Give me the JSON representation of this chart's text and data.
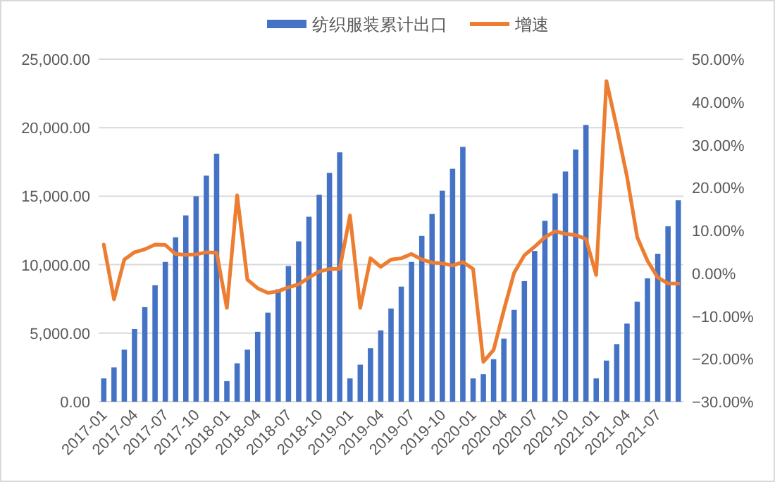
{
  "chart_data": {
    "type": "bar",
    "legend": "top",
    "grid": "y",
    "categories": [
      "2017-01",
      null,
      null,
      "2017-04",
      null,
      null,
      "2017-07",
      null,
      null,
      "2017-10",
      null,
      null,
      "2018-01",
      null,
      null,
      "2018-04",
      null,
      null,
      "2018-07",
      null,
      null,
      "2018-10",
      null,
      null,
      "2019-01",
      null,
      null,
      "2019-04",
      null,
      null,
      "2019-07",
      null,
      null,
      "2019-10",
      null,
      null,
      "2020-01",
      null,
      null,
      "2020-04",
      null,
      null,
      "2020-07",
      null,
      null,
      "2020-10",
      null,
      null,
      "2021-01",
      null,
      null,
      "2021-04",
      null,
      null,
      "2021-07",
      null,
      null
    ],
    "series": [
      {
        "name": "纺织服装累计出口",
        "color": "#4472c4",
        "values": [
          1700,
          2500,
          3800,
          5300,
          6900,
          8500,
          10200,
          12000,
          13600,
          15000,
          16500,
          18100,
          1500,
          2800,
          3800,
          5100,
          6500,
          8200,
          9900,
          11700,
          13500,
          15100,
          16700,
          18200,
          1700,
          2700,
          3900,
          5200,
          6800,
          8400,
          10200,
          12100,
          13700,
          15400,
          17000,
          18600,
          1700,
          2000,
          3100,
          4600,
          6700,
          8800,
          11000,
          13200,
          15200,
          16800,
          18400,
          20200,
          1700,
          3000,
          4200,
          5700,
          7300,
          9000,
          10800,
          12800,
          14700
        ]
      },
      {
        "name": "增速",
        "type": "line",
        "axis": "y2",
        "color": "#ed7d31",
        "values": [
          6.7,
          -6.1,
          3.2,
          4.9,
          5.6,
          6.7,
          6.6,
          4.5,
          4.3,
          4.4,
          4.9,
          4.8,
          -8.1,
          18.2,
          -1.5,
          -3.5,
          -4.6,
          -4.2,
          -3.3,
          -2.6,
          -1.0,
          0.4,
          1.0,
          1.0,
          13.5,
          -8.1,
          3.5,
          1.5,
          3.2,
          3.5,
          4.5,
          3.2,
          2.5,
          2.3,
          1.8,
          2.6,
          1.0,
          -20.7,
          -17.9,
          -8.6,
          0.1,
          4.2,
          6.2,
          8.4,
          9.8,
          9.2,
          8.9,
          8.0,
          -0.4,
          44.9,
          34.1,
          22.6,
          8.4,
          2.9,
          -1.0,
          -2.4,
          -2.4
        ]
      }
    ],
    "ylim": [
      0,
      25000
    ],
    "yticks": [
      {
        "value": 0,
        "label": "0.00"
      },
      {
        "value": 5000,
        "label": "5,000.00"
      },
      {
        "value": 10000,
        "label": "10,000.00"
      },
      {
        "value": 15000,
        "label": "15,000.00"
      },
      {
        "value": 20000,
        "label": "20,000.00"
      },
      {
        "value": 25000,
        "label": "25,000.00"
      }
    ],
    "y2lim": [
      -30,
      50
    ],
    "y2ticks": [
      {
        "value": -30,
        "label": "−30.00%"
      },
      {
        "value": -20,
        "label": "−20.00%"
      },
      {
        "value": -10,
        "label": "−10.00%"
      },
      {
        "value": 0,
        "label": "0.00%"
      },
      {
        "value": 10,
        "label": "10.00%"
      },
      {
        "value": 20,
        "label": "20.00%"
      },
      {
        "value": 30,
        "label": "30.00%"
      },
      {
        "value": 40,
        "label": "40.00%"
      },
      {
        "value": 50,
        "label": "50.00%"
      }
    ]
  }
}
